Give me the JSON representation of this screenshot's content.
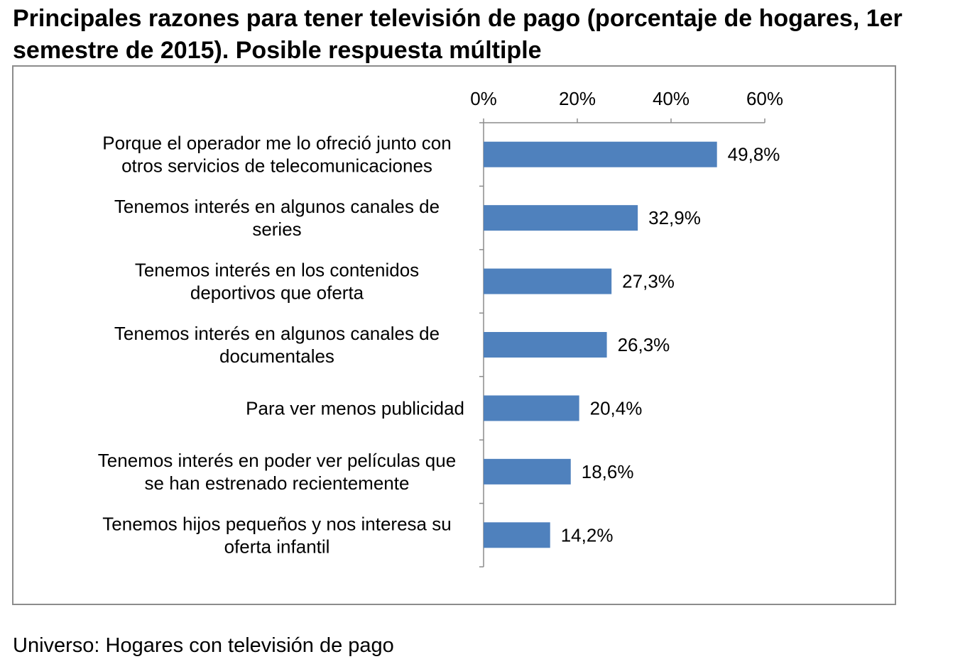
{
  "title": "Principales razones para tener televisión de pago (porcentaje de hogares, 1er semestre de 2015). Posible respuesta múltiple",
  "footnote": "Universo: Hogares con televisión de pago",
  "chart_data": {
    "type": "bar",
    "orientation": "horizontal",
    "categories": [
      [
        "Porque el operador me lo ofreció junto con",
        "otros servicios de telecomunicaciones"
      ],
      [
        "Tenemos interés en algunos canales de",
        "series"
      ],
      [
        "Tenemos interés en los contenidos",
        "deportivos que oferta"
      ],
      [
        "Tenemos interés en algunos canales de",
        "documentales"
      ],
      [
        "Para ver menos publicidad"
      ],
      [
        "Tenemos interés en poder ver películas que",
        "se han estrenado recientemente"
      ],
      [
        "Tenemos hijos pequeños y nos interesa su",
        "oferta infantil"
      ]
    ],
    "values": [
      49.8,
      32.9,
      27.3,
      26.3,
      20.4,
      18.6,
      14.2
    ],
    "value_labels": [
      "49,8%",
      "32,9%",
      "27,3%",
      "26,3%",
      "20,4%",
      "18,6%",
      "14,2%"
    ],
    "xlim": [
      0,
      60
    ],
    "xticks": [
      0,
      20,
      40,
      60
    ],
    "xtick_labels": [
      "0%",
      "20%",
      "40%",
      "60%"
    ],
    "x_axis_position": "top",
    "grid": false,
    "legend": "none",
    "bar_color": "#4f81bd",
    "axis_color": "#8c8c8c"
  }
}
